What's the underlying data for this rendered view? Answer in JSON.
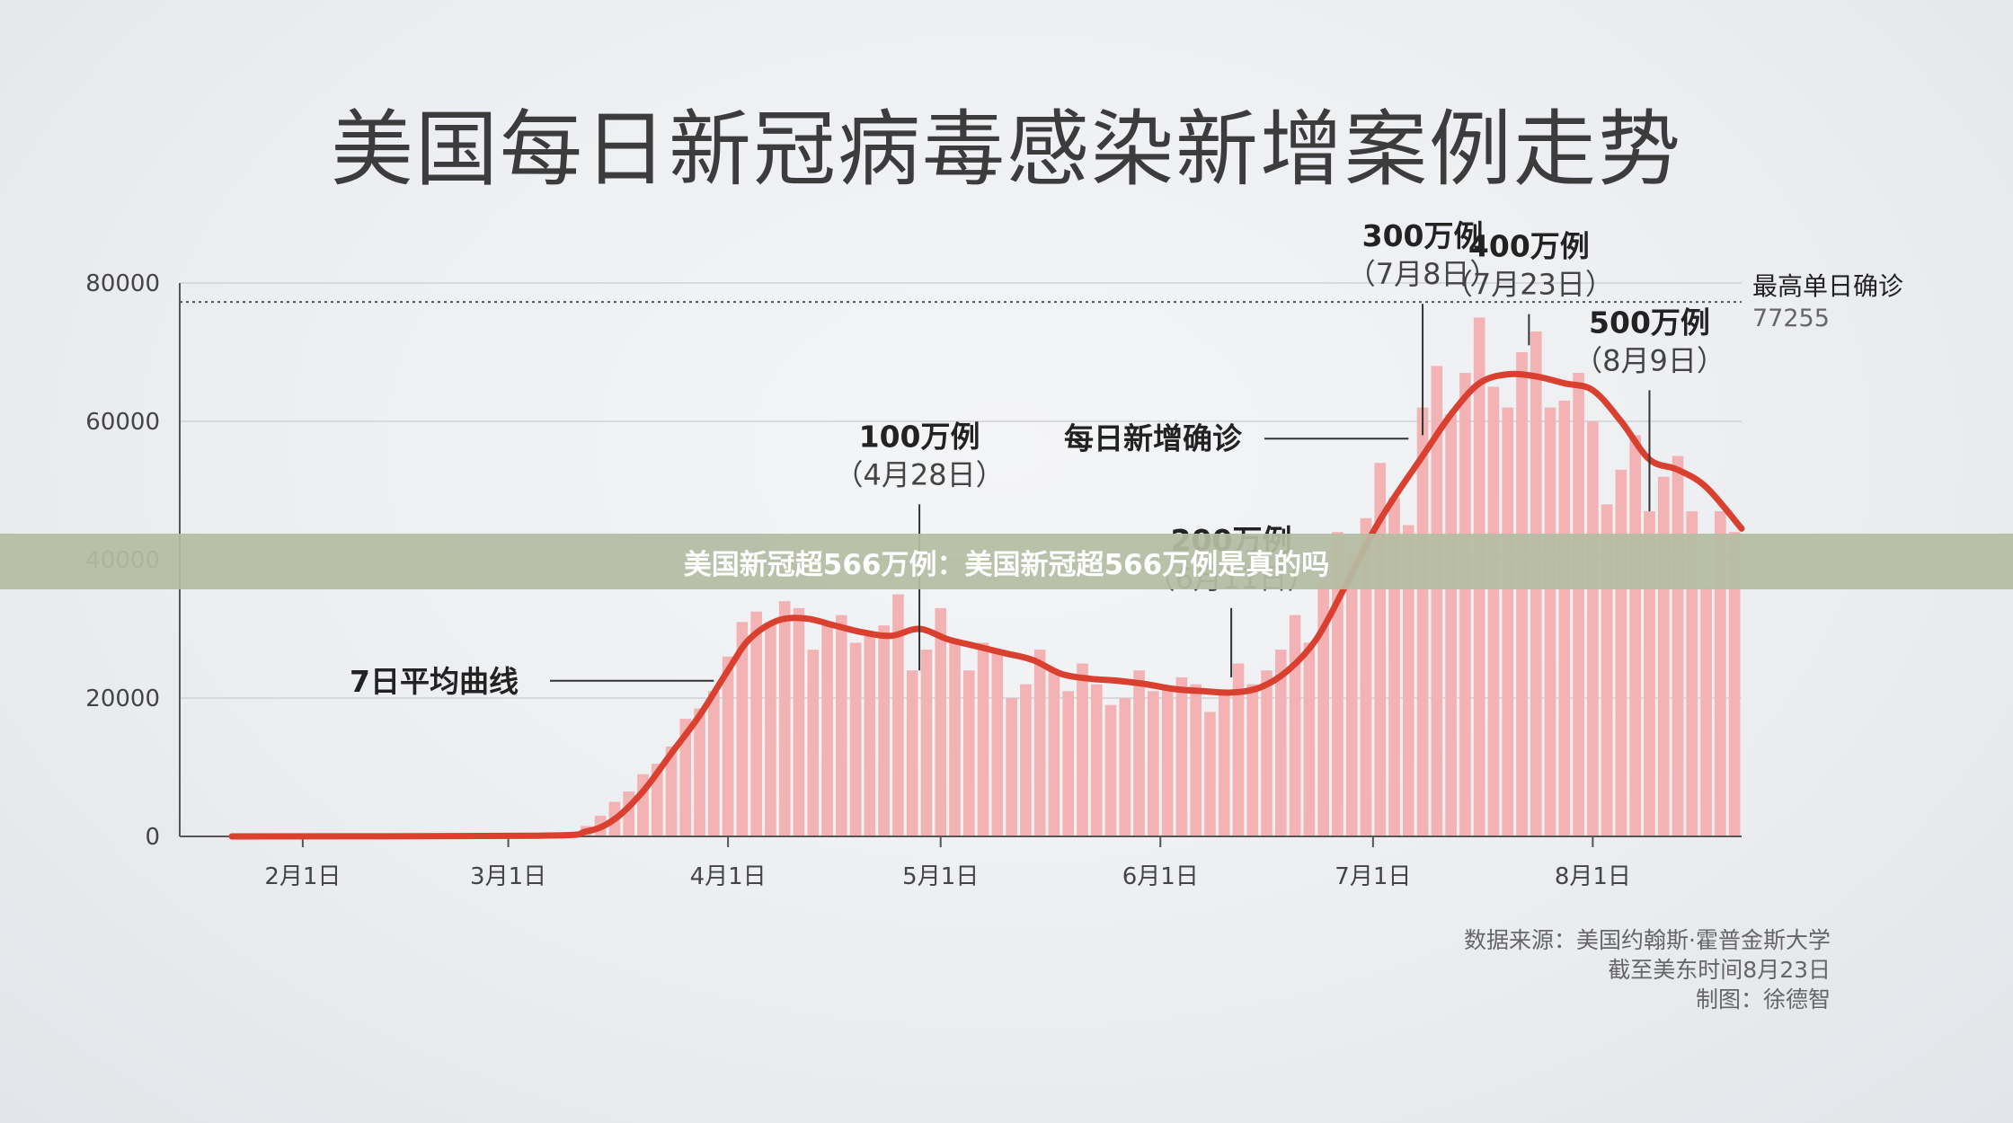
{
  "page": {
    "title": "美国每日新冠病毒感染新增案例走势",
    "banner": "美国新冠超566万例：美国新冠超566万例是真的吗",
    "source_lines": [
      "数据来源：美国约翰斯·霍普金斯大学",
      "截至美东时间8月23日",
      "制图：徐德智"
    ]
  },
  "chart_data": {
    "type": "bar",
    "ylim": [
      0,
      80000
    ],
    "yticks": [
      0,
      20000,
      40000,
      60000,
      80000
    ],
    "ytick_labels": [
      "0",
      "20000",
      "40000",
      "60000",
      "80000"
    ],
    "x_start": "2020-01-22",
    "x_end": "2020-08-22",
    "xticks": [
      {
        "date": "2020-02-01",
        "label": "2月1日"
      },
      {
        "date": "2020-03-01",
        "label": "3月1日"
      },
      {
        "date": "2020-04-01",
        "label": "4月1日"
      },
      {
        "date": "2020-05-01",
        "label": "5月1日"
      },
      {
        "date": "2020-06-01",
        "label": "6月1日"
      },
      {
        "date": "2020-07-01",
        "label": "7月1日"
      },
      {
        "date": "2020-08-01",
        "label": "8月1日"
      }
    ],
    "peak_line": {
      "value": 77255,
      "label": "最高单日确诊",
      "value_label": "77255"
    },
    "colors": {
      "bars": "#f3b3b5",
      "avg_line": "#d9402f",
      "annotation_line": "#333333",
      "peak_line": "#555555"
    },
    "series": [
      {
        "name": "每日新增确诊",
        "kind": "bar",
        "points": [
          [
            "2020-03-10",
            500
          ],
          [
            "2020-03-12",
            1500
          ],
          [
            "2020-03-14",
            3000
          ],
          [
            "2020-03-16",
            5000
          ],
          [
            "2020-03-18",
            6500
          ],
          [
            "2020-03-20",
            9000
          ],
          [
            "2020-03-22",
            10500
          ],
          [
            "2020-03-24",
            13000
          ],
          [
            "2020-03-26",
            17000
          ],
          [
            "2020-03-28",
            18500
          ],
          [
            "2020-03-30",
            21000
          ],
          [
            "2020-04-01",
            26000
          ],
          [
            "2020-04-03",
            31000
          ],
          [
            "2020-04-05",
            32500
          ],
          [
            "2020-04-07",
            31000
          ],
          [
            "2020-04-09",
            34000
          ],
          [
            "2020-04-11",
            33000
          ],
          [
            "2020-04-13",
            27000
          ],
          [
            "2020-04-15",
            31000
          ],
          [
            "2020-04-17",
            32000
          ],
          [
            "2020-04-19",
            28000
          ],
          [
            "2020-04-21",
            29000
          ],
          [
            "2020-04-23",
            30500
          ],
          [
            "2020-04-25",
            35000
          ],
          [
            "2020-04-27",
            24000
          ],
          [
            "2020-04-29",
            27000
          ],
          [
            "2020-05-01",
            33000
          ],
          [
            "2020-05-03",
            28000
          ],
          [
            "2020-05-05",
            24000
          ],
          [
            "2020-05-07",
            28000
          ],
          [
            "2020-05-09",
            27000
          ],
          [
            "2020-05-11",
            20000
          ],
          [
            "2020-05-13",
            22000
          ],
          [
            "2020-05-15",
            27000
          ],
          [
            "2020-05-17",
            24000
          ],
          [
            "2020-05-19",
            21000
          ],
          [
            "2020-05-21",
            25000
          ],
          [
            "2020-05-23",
            22000
          ],
          [
            "2020-05-25",
            19000
          ],
          [
            "2020-05-27",
            20000
          ],
          [
            "2020-05-29",
            24000
          ],
          [
            "2020-05-31",
            21000
          ],
          [
            "2020-06-02",
            21500
          ],
          [
            "2020-06-04",
            23000
          ],
          [
            "2020-06-06",
            22000
          ],
          [
            "2020-06-08",
            18000
          ],
          [
            "2020-06-10",
            21000
          ],
          [
            "2020-06-12",
            25000
          ],
          [
            "2020-06-14",
            22000
          ],
          [
            "2020-06-16",
            24000
          ],
          [
            "2020-06-18",
            27000
          ],
          [
            "2020-06-20",
            32000
          ],
          [
            "2020-06-22",
            28000
          ],
          [
            "2020-06-24",
            37000
          ],
          [
            "2020-06-26",
            44000
          ],
          [
            "2020-06-28",
            41000
          ],
          [
            "2020-06-30",
            46000
          ],
          [
            "2020-07-02",
            54000
          ],
          [
            "2020-07-04",
            49000
          ],
          [
            "2020-07-06",
            45000
          ],
          [
            "2020-07-08",
            62000
          ],
          [
            "2020-07-10",
            68000
          ],
          [
            "2020-07-12",
            61000
          ],
          [
            "2020-07-14",
            67000
          ],
          [
            "2020-07-16",
            75000
          ],
          [
            "2020-07-18",
            65000
          ],
          [
            "2020-07-20",
            62000
          ],
          [
            "2020-07-22",
            70000
          ],
          [
            "2020-07-24",
            73000
          ],
          [
            "2020-07-26",
            62000
          ],
          [
            "2020-07-28",
            63000
          ],
          [
            "2020-07-30",
            67000
          ],
          [
            "2020-08-01",
            60000
          ],
          [
            "2020-08-03",
            48000
          ],
          [
            "2020-08-05",
            53000
          ],
          [
            "2020-08-07",
            58000
          ],
          [
            "2020-08-09",
            47000
          ],
          [
            "2020-08-11",
            52000
          ],
          [
            "2020-08-13",
            55000
          ],
          [
            "2020-08-15",
            47000
          ],
          [
            "2020-08-17",
            36000
          ],
          [
            "2020-08-19",
            47000
          ],
          [
            "2020-08-21",
            44000
          ]
        ]
      },
      {
        "name": "7日平均曲线",
        "kind": "line",
        "points": [
          [
            "2020-01-22",
            0
          ],
          [
            "2020-03-05",
            100
          ],
          [
            "2020-03-12",
            700
          ],
          [
            "2020-03-16",
            2500
          ],
          [
            "2020-03-20",
            6500
          ],
          [
            "2020-03-24",
            12000
          ],
          [
            "2020-03-28",
            17500
          ],
          [
            "2020-04-01",
            24000
          ],
          [
            "2020-04-04",
            28500
          ],
          [
            "2020-04-08",
            31200
          ],
          [
            "2020-04-12",
            31500
          ],
          [
            "2020-04-16",
            30500
          ],
          [
            "2020-04-20",
            29500
          ],
          [
            "2020-04-24",
            29000
          ],
          [
            "2020-04-28",
            30000
          ],
          [
            "2020-05-02",
            28500
          ],
          [
            "2020-05-06",
            27500
          ],
          [
            "2020-05-10",
            26500
          ],
          [
            "2020-05-14",
            25500
          ],
          [
            "2020-05-18",
            23500
          ],
          [
            "2020-05-22",
            22800
          ],
          [
            "2020-05-26",
            22500
          ],
          [
            "2020-05-30",
            22000
          ],
          [
            "2020-06-03",
            21300
          ],
          [
            "2020-06-07",
            21000
          ],
          [
            "2020-06-11",
            20800
          ],
          [
            "2020-06-15",
            21500
          ],
          [
            "2020-06-19",
            24000
          ],
          [
            "2020-06-23",
            28500
          ],
          [
            "2020-06-27",
            36000
          ],
          [
            "2020-07-01",
            44000
          ],
          [
            "2020-07-04",
            49000
          ],
          [
            "2020-07-08",
            55000
          ],
          [
            "2020-07-12",
            61000
          ],
          [
            "2020-07-16",
            65500
          ],
          [
            "2020-07-20",
            66800
          ],
          [
            "2020-07-24",
            66500
          ],
          [
            "2020-07-28",
            65500
          ],
          [
            "2020-08-01",
            64500
          ],
          [
            "2020-08-05",
            60000
          ],
          [
            "2020-08-09",
            54500
          ],
          [
            "2020-08-13",
            53000
          ],
          [
            "2020-08-17",
            50500
          ],
          [
            "2020-08-22",
            44500
          ]
        ]
      }
    ],
    "annotations": [
      {
        "id": "avg",
        "text": "7日平均曲线",
        "anchor": [
          "2020-03-30",
          22500
        ]
      },
      {
        "id": "daily",
        "text": "每日新增确诊",
        "anchor": [
          "2020-07-06",
          57500
        ]
      },
      {
        "id": "m1",
        "text": "100万例",
        "sub": "（4月28日）",
        "date": "2020-04-28",
        "top": 48000,
        "bottom": 24000
      },
      {
        "id": "m2",
        "text": "200万例",
        "sub": "（6月11日）",
        "date": "2020-06-11",
        "top": 33000,
        "bottom": 23000
      },
      {
        "id": "m3",
        "text": "300万例",
        "sub": "（7月8日）",
        "date": "2020-07-08",
        "top": 77000,
        "bottom": 58000
      },
      {
        "id": "m4",
        "text": "400万例",
        "sub": "（7月23日）",
        "date": "2020-07-23",
        "top": 75500,
        "bottom": 71000
      },
      {
        "id": "m5",
        "text": "500万例",
        "sub": "（8月9日）",
        "date": "2020-08-09",
        "top": 64500,
        "bottom": 47000
      }
    ]
  }
}
